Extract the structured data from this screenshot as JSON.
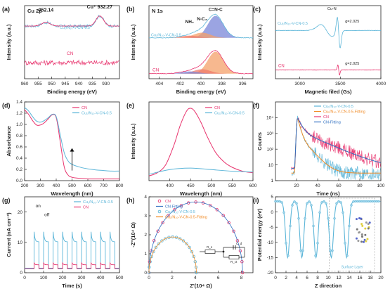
{
  "figure": {
    "background": "#ffffff"
  },
  "colors": {
    "cn": "#e8336d",
    "cuv": "#5bb5d8",
    "cuv_fit": "#f08a24",
    "cn_fit": "#2f6fc0",
    "dark": "#333333",
    "blue_fill": "#7a86d8",
    "red_fill": "#f07a6a",
    "orange_fill": "#f4a06a"
  },
  "chart_data": [
    {
      "panel": "a",
      "type": "line",
      "panel_label": "(a)",
      "title": "Cu 2p",
      "xlabel": "Binding energy (eV)",
      "ylabel": "Intensity (a.u.)",
      "xlim": [
        960,
        925
      ],
      "xticks": [
        960,
        955,
        950,
        945,
        940,
        935,
        930
      ],
      "annotations": [
        {
          "text": "952.14",
          "x": 952.1,
          "y": 0.92
        },
        {
          "text": "Cu⁺ 932.27",
          "x": 932.3,
          "y": 0.96
        }
      ],
      "series": [
        {
          "name": "Cu₁/N₁₀-V-CN-0.5",
          "color_key": "cuv",
          "baseline": 0.72,
          "noise": 0.02,
          "peaks": [
            {
              "x": 952.14,
              "h": 0.05,
              "w": 1.6
            },
            {
              "x": 932.27,
              "h": 0.14,
              "w": 1.4
            }
          ]
        },
        {
          "name": "CN",
          "color_key": "cn",
          "baseline": 0.22,
          "noise": 0.035,
          "peaks": []
        }
      ]
    },
    {
      "panel": "b",
      "type": "line",
      "panel_label": "(b)",
      "title": "N 1s",
      "xlabel": "Binding energy (eV)",
      "ylabel": "Intensity (a.u.)",
      "xlim": [
        405,
        395
      ],
      "xticks": [
        404,
        402,
        400,
        398,
        396
      ],
      "annotations": [
        {
          "text": "C=N-C",
          "x": 398.6,
          "y": 0.93
        },
        {
          "text": "N-C₃",
          "x": 399.9,
          "y": 0.8
        },
        {
          "text": "NH₂",
          "x": 401.1,
          "y": 0.76
        }
      ],
      "series": [
        {
          "name": "Cu₁/N₁₀-V-CN-0.5",
          "color_key": "cuv",
          "baseline": 0.56,
          "components": [
            {
              "x": 398.6,
              "h": 0.3,
              "w": 0.75,
              "fill_key": "blue_fill"
            },
            {
              "x": 399.9,
              "h": 0.07,
              "w": 0.8,
              "fill_key": "orange_fill"
            },
            {
              "x": 401.1,
              "h": 0.03,
              "w": 0.8,
              "fill_key": "red_fill"
            }
          ]
        },
        {
          "name": "CN",
          "color_key": "cn",
          "baseline": 0.07,
          "components": [
            {
              "x": 398.6,
              "h": 0.3,
              "w": 0.75,
              "fill_key": "orange_fill"
            },
            {
              "x": 399.9,
              "h": 0.06,
              "w": 0.8,
              "fill_key": "red_fill"
            },
            {
              "x": 401.1,
              "h": 0.03,
              "w": 0.8,
              "fill_key": "blue_fill"
            }
          ]
        }
      ]
    },
    {
      "panel": "c",
      "type": "line",
      "panel_label": "(c)",
      "xlabel": "Magnetic filed (Gs)",
      "ylabel": "Intensity (a.u.)",
      "xlim": [
        2700,
        4000
      ],
      "xticks": [
        3000,
        3500,
        4000
      ],
      "annotations": [
        {
          "text": "Cu-N",
          "x": 3340,
          "y": 0.94
        },
        {
          "text": "g=2.025",
          "x": 3560,
          "y": 0.77
        },
        {
          "text": "g=2.025",
          "x": 3560,
          "y": 0.19
        }
      ],
      "series": [
        {
          "name": "Cu₁/N₁₀-V-CN-0.5",
          "color_key": "cuv",
          "baseline": 0.66,
          "derivatives": [
            {
              "x": 3330,
              "a": 0.08,
              "w": 70
            },
            {
              "x": 3480,
              "a": 0.22,
              "w": 18
            }
          ]
        },
        {
          "name": "CN",
          "color_key": "cn",
          "baseline": 0.12,
          "derivatives": [
            {
              "x": 3480,
              "a": 0.07,
              "w": 10
            }
          ]
        }
      ]
    },
    {
      "panel": "d",
      "type": "line",
      "panel_label": "(d)",
      "xlabel": "Wavelength (nm)",
      "ylabel": "Absorbance",
      "xlim": [
        200,
        800
      ],
      "ylim": [
        0,
        1.4
      ],
      "xticks": [
        200,
        300,
        400,
        500,
        600,
        700,
        800
      ],
      "yticks": [
        0.0,
        0.2,
        0.4,
        0.6,
        0.8,
        1.0,
        1.2,
        1.4
      ],
      "arrow": {
        "x": 500,
        "y1": 0.18,
        "y2": 0.58
      },
      "series": [
        {
          "name": "CN",
          "color_key": "cn",
          "x": [
            200,
            225,
            250,
            275,
            300,
            325,
            350,
            375,
            400,
            425,
            450,
            475,
            500,
            550,
            600,
            650,
            700,
            750,
            800
          ],
          "y": [
            1.26,
            1.18,
            1.07,
            0.99,
            0.99,
            1.03,
            1.1,
            1.17,
            1.12,
            0.7,
            0.25,
            0.1,
            0.06,
            0.04,
            0.03,
            0.03,
            0.03,
            0.03,
            0.03
          ]
        },
        {
          "name": "Cu₁/N₁₀-V-CN-0.5",
          "color_key": "cuv",
          "x": [
            200,
            225,
            250,
            275,
            300,
            325,
            350,
            375,
            400,
            425,
            450,
            475,
            500,
            550,
            600,
            650,
            700,
            750,
            800
          ],
          "y": [
            1.3,
            1.24,
            1.14,
            1.06,
            1.04,
            1.07,
            1.12,
            1.18,
            1.14,
            0.82,
            0.5,
            0.35,
            0.29,
            0.24,
            0.21,
            0.19,
            0.18,
            0.17,
            0.17
          ]
        }
      ]
    },
    {
      "panel": "e",
      "type": "line",
      "panel_label": "(e)",
      "xlabel": "Wavelength (nm)",
      "ylabel": "Intensity (a.u.)",
      "xlim": [
        350,
        600
      ],
      "xticks": [
        400,
        450,
        500,
        550,
        600
      ],
      "series": [
        {
          "name": "CN",
          "color_key": "cn",
          "x": [
            350,
            370,
            390,
            410,
            425,
            440,
            450,
            460,
            475,
            490,
            510,
            530,
            550,
            575,
            600
          ],
          "y": [
            0.06,
            0.1,
            0.2,
            0.45,
            0.7,
            0.88,
            0.92,
            0.88,
            0.74,
            0.56,
            0.36,
            0.24,
            0.17,
            0.12,
            0.1
          ]
        },
        {
          "name": "Cu₁/N₁₀-V-CN-0.5",
          "color_key": "cuv",
          "x": [
            350,
            400,
            450,
            500,
            550,
            600
          ],
          "y": [
            0.08,
            0.14,
            0.16,
            0.14,
            0.12,
            0.11
          ]
        }
      ]
    },
    {
      "panel": "f",
      "type": "line",
      "panel_label": "(f)",
      "xlabel": "Time (ns)",
      "ylabel": "Counts",
      "xlim": [
        0,
        100
      ],
      "ylim_log": [
        1,
        100000
      ],
      "xticks": [
        20,
        40,
        60,
        80,
        100
      ],
      "yticks_log": [
        1,
        10,
        100,
        1000,
        10000
      ],
      "ytick_labels": [
        "1",
        "10",
        "10²",
        "10³",
        "10⁴"
      ],
      "series": [
        {
          "name": "Cu₁/N₁₀-V-CN-0.5",
          "color_key": "cuv",
          "peak_x": 21,
          "peak": 10000,
          "tau1": 1.6,
          "tau2": 6,
          "a2": 0.08,
          "floor": 3,
          "noisy": true
        },
        {
          "name": "Cu₁/N₁₀-V-CN-0.5-Fitting",
          "color_key": "cuv_fit",
          "peak_x": 21,
          "peak": 10000,
          "tau1": 1.6,
          "tau2": 6,
          "a2": 0.08,
          "floor": 3,
          "noisy": false
        },
        {
          "name": "CN",
          "color_key": "cn",
          "peak_x": 21,
          "peak": 10000,
          "tau1": 2.8,
          "tau2": 15,
          "a2": 0.15,
          "floor": 6,
          "noisy": true
        },
        {
          "name": "CN-Fitting",
          "color_key": "cn_fit",
          "peak_x": 21,
          "peak": 10000,
          "tau1": 2.8,
          "tau2": 15,
          "a2": 0.15,
          "floor": 6,
          "noisy": false
        }
      ]
    },
    {
      "panel": "g",
      "type": "line",
      "panel_label": "(g)",
      "xlabel": "Time (s)",
      "ylabel": "Current (nA cm⁻²)",
      "xlim": [
        0,
        500
      ],
      "ylim": [
        0,
        25
      ],
      "xticks": [
        0,
        100,
        200,
        300,
        400,
        500
      ],
      "yticks": [
        0,
        10,
        20
      ],
      "annotations": [
        {
          "text": "on",
          "x": 58,
          "y": 21.5
        },
        {
          "text": "off",
          "x": 104,
          "y": 18.6
        }
      ],
      "cycles_start": [
        50,
        100,
        150,
        200,
        250,
        300,
        350,
        400,
        450
      ],
      "on_duration": 25,
      "series": [
        {
          "name": "Cu₁/N₁₀-V-CN-0.5",
          "color_key": "cuv",
          "base": 1.5,
          "spike": 13.5,
          "plateau": 10.2
        },
        {
          "name": "CN",
          "color_key": "cn",
          "base": 1.3,
          "spike": 3.2,
          "plateau": 2.6
        }
      ]
    },
    {
      "panel": "h",
      "type": "scatter",
      "panel_label": "(h)",
      "xlabel": "Z'(10⁴ Ω)",
      "ylabel": "-Z''(10⁴ Ω)",
      "xlim": [
        0,
        9
      ],
      "ylim": [
        0,
        4
      ],
      "xticks": [
        0,
        2,
        4,
        6,
        8
      ],
      "yticks": [
        0,
        1,
        2,
        3,
        4
      ],
      "circuit_labels": [
        "R_s",
        "C_d",
        "R_ct"
      ],
      "series": [
        {
          "name": "CN",
          "color_key": "cn",
          "marker": "circle",
          "R": 8.1
        },
        {
          "name": "CN-Fitting",
          "color_key": "cn_fit",
          "marker": "line",
          "R": 8.1
        },
        {
          "name": "Cu₁/N₁₀-V-CN-0.5",
          "color_key": "cuv",
          "marker": "circle",
          "R": 4.1
        },
        {
          "name": "Cu₁/N₁₀-V-CN-0.5-Fitting",
          "color_key": "cuv_fit",
          "marker": "line",
          "R": 4.1
        }
      ]
    },
    {
      "panel": "i",
      "type": "line",
      "panel_label": "(i)",
      "xlabel": "Z direction",
      "ylabel": "Potential energy (eV)",
      "xlim": [
        0,
        20
      ],
      "ylim": [
        -20,
        5
      ],
      "xticks": [
        0,
        2,
        4,
        6,
        8,
        10,
        12,
        14,
        16,
        18,
        20
      ],
      "yticks": [
        -20,
        -15,
        -10,
        -5,
        0,
        5
      ],
      "annotation": "Surface Layer",
      "plateau": 3.5,
      "wells": [
        {
          "x": 2.3,
          "depth": -15
        },
        {
          "x": 5.0,
          "depth": -15
        },
        {
          "x": 7.7,
          "depth": -15
        },
        {
          "x": 10.6,
          "depth": -15
        },
        {
          "x": 13.5,
          "depth": -15
        }
      ]
    }
  ]
}
